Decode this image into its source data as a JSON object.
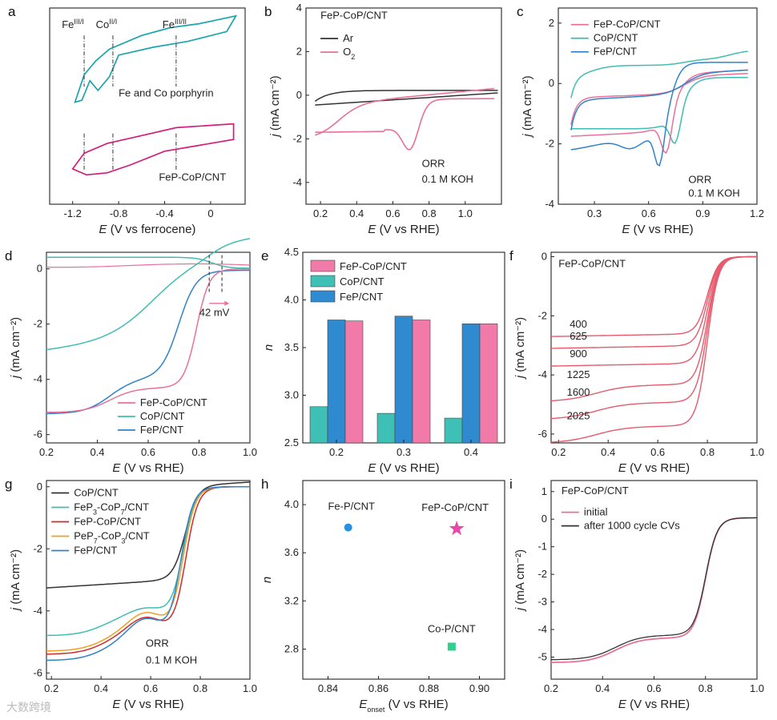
{
  "colors": {
    "pink": "#e8709a",
    "teal": "#3fbdb4",
    "blue": "#2f83cc",
    "black": "#333333",
    "red": "#d42a2a",
    "orange": "#f0a020",
    "magenta": "#d21e7d",
    "cyanA": "#1aa5ad",
    "barPink": "#f27aa8",
    "barTeal": "#3ec0b6",
    "barBlue": "#2f8ad0",
    "green": "#2fcf8f",
    "star": "#e64aa8",
    "dot": "#2b8fe0",
    "curveRed": "#e65a6c"
  },
  "watermark": "大数跨境",
  "chart_data": [
    {
      "panel": "a",
      "type": "line",
      "xlabel_italic": "E",
      "xlabel_rest": " (V vs ferrocene)",
      "xticks": [
        "-1.2",
        "-0.8",
        "-0.4",
        "0"
      ],
      "xlim": [
        -1.4,
        0.3
      ],
      "series": [
        {
          "name": "Fe and Co porphyrin",
          "label_base": "Fe and Co porphyrin"
        },
        {
          "name": "FeP-CoP/CNT",
          "label_base": "FeP-CoP/CNT"
        }
      ],
      "annotations": [
        {
          "base": "Fe",
          "sup": "III/I",
          "x": -1.1
        },
        {
          "base": "Co",
          "sup": "II/I",
          "x": -0.85
        },
        {
          "base": "Fe",
          "sup": "III/II",
          "x": -0.3
        }
      ]
    },
    {
      "panel": "b",
      "type": "line",
      "title": "FeP-CoP/CNT",
      "xlabel_italic": "E",
      "xlabel_rest": " (V vs RHE)",
      "ylabel_italic": "j",
      "ylabel_rest": " (mA cm⁻²)",
      "xlim": [
        0.12,
        1.2
      ],
      "ylim": [
        -5,
        4
      ],
      "xticks": [
        "0.2",
        "0.4",
        "0.6",
        "0.8",
        "1.0"
      ],
      "yticks": [
        "-4",
        "-2",
        "0",
        "2",
        "4"
      ],
      "legend": [
        "Ar",
        "O₂"
      ],
      "note1": "ORR",
      "note2": "0.1 M KOH"
    },
    {
      "panel": "c",
      "type": "line",
      "xlabel_italic": "E",
      "xlabel_rest": " (V vs RHE)",
      "ylabel_italic": "j",
      "ylabel_rest": " (mA cm⁻²)",
      "xlim": [
        0.1,
        1.2
      ],
      "ylim": [
        -4,
        2.5
      ],
      "xticks": [
        "0.3",
        "0.6",
        "0.9",
        "1.2"
      ],
      "yticks": [
        "-4",
        "-2",
        "0",
        "2"
      ],
      "legend": [
        "FeP-CoP/CNT",
        "CoP/CNT",
        "FeP/CNT"
      ],
      "note1": "ORR",
      "note2": "0.1 M KOH"
    },
    {
      "panel": "d",
      "type": "line",
      "xlabel_italic": "E",
      "xlabel_rest": " (V vs RHE)",
      "ylabel_italic": "j",
      "ylabel_rest": " (mA cm⁻²)",
      "xlim": [
        0.2,
        1.0
      ],
      "ylim": [
        -6.3,
        0.6
      ],
      "xticks": [
        "0.2",
        "0.4",
        "0.6",
        "0.8",
        "1.0"
      ],
      "yticks": [
        "-6",
        "-4",
        "-2",
        "0"
      ],
      "legend": [
        "FeP-CoP/CNT",
        "CoP/CNT",
        "FeP/CNT"
      ],
      "delta_label": "42 mV"
    },
    {
      "panel": "e",
      "type": "bar",
      "xlabel_italic": "E",
      "xlabel_rest": " (V vs RHE)",
      "ylabel_italic": "n",
      "categories": [
        "0.2",
        "0.3",
        "0.4"
      ],
      "ylim": [
        2.5,
        4.5
      ],
      "yticks": [
        "2.5",
        "3.0",
        "3.5",
        "4.0",
        "4.5"
      ],
      "series": [
        {
          "name": "CoP/CNT",
          "values": [
            2.88,
            2.81,
            2.76
          ]
        },
        {
          "name": "FeP/CNT",
          "values": [
            3.79,
            3.83,
            3.75
          ]
        },
        {
          "name": "FeP-CoP/CNT",
          "values": [
            3.78,
            3.79,
            3.75
          ]
        }
      ],
      "legend": [
        "FeP-CoP/CNT",
        "CoP/CNT",
        "FeP/CNT"
      ]
    },
    {
      "panel": "f",
      "type": "line",
      "title": "FeP-CoP/CNT",
      "xlabel_italic": "E",
      "xlabel_rest": " (V vs RHE)",
      "ylabel_italic": "j",
      "ylabel_rest": " (mA cm⁻²)",
      "xlim": [
        0.17,
        1.0
      ],
      "ylim": [
        -6.3,
        0.15
      ],
      "xticks": [
        "0.2",
        "0.4",
        "0.6",
        "0.8",
        "1.0"
      ],
      "yticks": [
        "-6",
        "-4",
        "-2",
        "0"
      ],
      "series": [
        {
          "name": "400",
          "plateau": -2.7
        },
        {
          "name": "625",
          "plateau": -3.1
        },
        {
          "name": "900",
          "plateau": -3.7
        },
        {
          "name": "1225",
          "plateau": -4.4
        },
        {
          "name": "1600",
          "plateau": -5.0
        },
        {
          "name": "2025",
          "plateau": -5.8
        }
      ]
    },
    {
      "panel": "g",
      "type": "line",
      "xlabel_italic": "E",
      "xlabel_rest": " (V vs RHE)",
      "ylabel_italic": "j",
      "ylabel_rest": " (mA cm⁻²)",
      "xlim": [
        0.18,
        1.0
      ],
      "ylim": [
        -6.2,
        0.2
      ],
      "xticks": [
        "0.2",
        "0.4",
        "0.6",
        "0.8",
        "1.0"
      ],
      "yticks": [
        "-6",
        "-4",
        "-2",
        "0"
      ],
      "series": [
        {
          "name": "CoP/CNT"
        },
        {
          "name": "FeP₃-CoP₇/CNT",
          "base": "FeP",
          "s1": "3",
          "mid": "-CoP",
          "s2": "7",
          "tail": "/CNT"
        },
        {
          "name": "FeP-CoP/CNT"
        },
        {
          "name": "PeP₇-CoP₃/CNT",
          "base": "PeP",
          "s1": "7",
          "mid": "-CoP",
          "s2": "3",
          "tail": "/CNT"
        },
        {
          "name": "FeP/CNT"
        }
      ],
      "note1": "ORR",
      "note2": "0.1 M KOH"
    },
    {
      "panel": "h",
      "type": "scatter",
      "xlabel_italic": "E",
      "xlabel_sub": "onset",
      "xlabel_rest": " (V vs RHE)",
      "ylabel_italic": "n",
      "xlim": [
        0.83,
        0.91
      ],
      "ylim": [
        2.55,
        4.2
      ],
      "xticks": [
        "0.84",
        "0.86",
        "0.88",
        "0.90"
      ],
      "yticks": [
        "2.8",
        "3.2",
        "3.6",
        "4.0"
      ],
      "points": [
        {
          "label": "Fe-P/CNT",
          "x": 0.848,
          "y": 3.81
        },
        {
          "label": "FeP-CoP/CNT",
          "x": 0.891,
          "y": 3.8
        },
        {
          "label": "Co-P/CNT",
          "x": 0.889,
          "y": 2.82
        }
      ]
    },
    {
      "panel": "i",
      "type": "line",
      "title": "FeP-CoP/CNT",
      "xlabel_italic": "E",
      "xlabel_rest": " (V vs RHE)",
      "ylabel_italic": "j",
      "ylabel_rest": " (mA cm⁻²)",
      "xlim": [
        0.2,
        1.0
      ],
      "ylim": [
        -5.8,
        1.4
      ],
      "xticks": [
        "0.2",
        "0.4",
        "0.6",
        "0.8",
        "1.0"
      ],
      "yticks": [
        "-5",
        "-4",
        "-3",
        "-2",
        "-1",
        "0",
        "1"
      ],
      "legend": [
        "initial",
        "after 1000 cycle CVs"
      ]
    }
  ]
}
